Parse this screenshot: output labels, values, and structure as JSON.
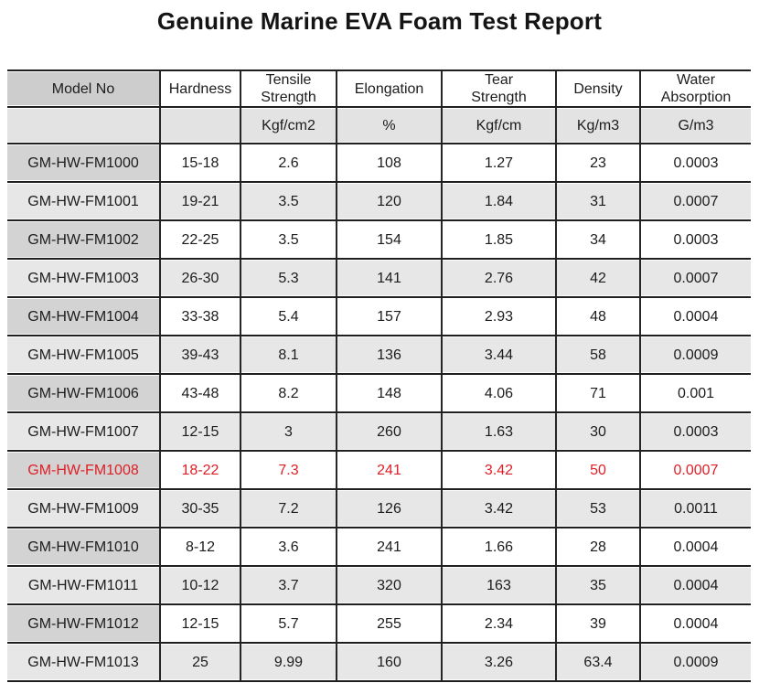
{
  "title": "Genuine Marine EVA Foam Test Report",
  "colors": {
    "highlight_red": "#e01e25",
    "header_model_bg": "#cdcdcd",
    "units_row_bg": "#e3e3e3",
    "band_model_bg": "#d3d3d3",
    "shade_row_bg": "#e7e7e7",
    "rule_color": "#1f1f1f"
  },
  "table": {
    "columns": [
      {
        "label": "Model No",
        "unit": ""
      },
      {
        "label": "Hardness",
        "unit": ""
      },
      {
        "label": "Tensile\nStrength",
        "unit": "Kgf/cm2"
      },
      {
        "label": "Elongation",
        "unit": "%"
      },
      {
        "label": "Tear\nStrength",
        "unit": "Kgf/cm"
      },
      {
        "label": "Density",
        "unit": "Kg/m3"
      },
      {
        "label": "Water\nAbsorption",
        "unit": "G/m3"
      }
    ],
    "rows": [
      {
        "model": "GM-HW-FM1000",
        "hardness": "15-18",
        "tensile": "2.6",
        "elongation": "108",
        "tear": "1.27",
        "density": "23",
        "water": "0.0003",
        "highlight": false
      },
      {
        "model": "GM-HW-FM1001",
        "hardness": "19-21",
        "tensile": "3.5",
        "elongation": "120",
        "tear": "1.84",
        "density": "31",
        "water": "0.0007",
        "highlight": false
      },
      {
        "model": "GM-HW-FM1002",
        "hardness": "22-25",
        "tensile": "3.5",
        "elongation": "154",
        "tear": "1.85",
        "density": "34",
        "water": "0.0003",
        "highlight": false
      },
      {
        "model": "GM-HW-FM1003",
        "hardness": "26-30",
        "tensile": "5.3",
        "elongation": "141",
        "tear": "2.76",
        "density": "42",
        "water": "0.0007",
        "highlight": false
      },
      {
        "model": "GM-HW-FM1004",
        "hardness": "33-38",
        "tensile": "5.4",
        "elongation": "157",
        "tear": "2.93",
        "density": "48",
        "water": "0.0004",
        "highlight": false
      },
      {
        "model": "GM-HW-FM1005",
        "hardness": "39-43",
        "tensile": "8.1",
        "elongation": "136",
        "tear": "3.44",
        "density": "58",
        "water": "0.0009",
        "highlight": false
      },
      {
        "model": "GM-HW-FM1006",
        "hardness": "43-48",
        "tensile": "8.2",
        "elongation": "148",
        "tear": "4.06",
        "density": "71",
        "water": "0.001",
        "highlight": false
      },
      {
        "model": "GM-HW-FM1007",
        "hardness": "12-15",
        "tensile": "3",
        "elongation": "260",
        "tear": "1.63",
        "density": "30",
        "water": "0.0003",
        "highlight": false
      },
      {
        "model": "GM-HW-FM1008",
        "hardness": "18-22",
        "tensile": "7.3",
        "elongation": "241",
        "tear": "3.42",
        "density": "50",
        "water": "0.0007",
        "highlight": true
      },
      {
        "model": "GM-HW-FM1009",
        "hardness": "30-35",
        "tensile": "7.2",
        "elongation": "126",
        "tear": "3.42",
        "density": "53",
        "water": "0.0011",
        "highlight": false
      },
      {
        "model": "GM-HW-FM1010",
        "hardness": "8-12",
        "tensile": "3.6",
        "elongation": "241",
        "tear": "1.66",
        "density": "28",
        "water": "0.0004",
        "highlight": false
      },
      {
        "model": "GM-HW-FM1011",
        "hardness": "10-12",
        "tensile": "3.7",
        "elongation": "320",
        "tear": "163",
        "density": "35",
        "water": "0.0004",
        "highlight": false
      },
      {
        "model": "GM-HW-FM1012",
        "hardness": "12-15",
        "tensile": "5.7",
        "elongation": "255",
        "tear": "2.34",
        "density": "39",
        "water": "0.0004",
        "highlight": false
      },
      {
        "model": "GM-HW-FM1013",
        "hardness": "25",
        "tensile": "9.99",
        "elongation": "160",
        "tear": "3.26",
        "density": "63.4",
        "water": "0.0009",
        "highlight": false
      }
    ]
  }
}
